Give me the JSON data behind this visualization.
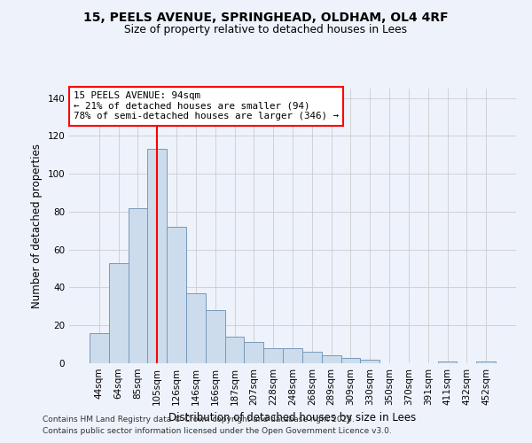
{
  "title_line1": "15, PEELS AVENUE, SPRINGHEAD, OLDHAM, OL4 4RF",
  "title_line2": "Size of property relative to detached houses in Lees",
  "xlabel": "Distribution of detached houses by size in Lees",
  "ylabel": "Number of detached properties",
  "categories": [
    "44sqm",
    "64sqm",
    "85sqm",
    "105sqm",
    "126sqm",
    "146sqm",
    "166sqm",
    "187sqm",
    "207sqm",
    "228sqm",
    "248sqm",
    "268sqm",
    "289sqm",
    "309sqm",
    "330sqm",
    "350sqm",
    "370sqm",
    "391sqm",
    "411sqm",
    "432sqm",
    "452sqm"
  ],
  "values": [
    16,
    53,
    82,
    113,
    72,
    37,
    28,
    14,
    11,
    8,
    8,
    6,
    4,
    3,
    2,
    0,
    0,
    0,
    1,
    0,
    1
  ],
  "bar_color": "#ccdcec",
  "bar_edge_color": "#7799bb",
  "vline_x": 3.0,
  "vline_color": "red",
  "ylim": [
    0,
    145
  ],
  "yticks": [
    0,
    20,
    40,
    60,
    80,
    100,
    120,
    140
  ],
  "annotation_title": "15 PEELS AVENUE: 94sqm",
  "annotation_line1": "← 21% of detached houses are smaller (94)",
  "annotation_line2": "78% of semi-detached houses are larger (346) →",
  "annotation_box_color": "red",
  "footer_line1": "Contains HM Land Registry data © Crown copyright and database right 2025.",
  "footer_line2": "Contains public sector information licensed under the Open Government Licence v3.0.",
  "bg_color": "#eef2fb",
  "grid_color": "#cccccc"
}
